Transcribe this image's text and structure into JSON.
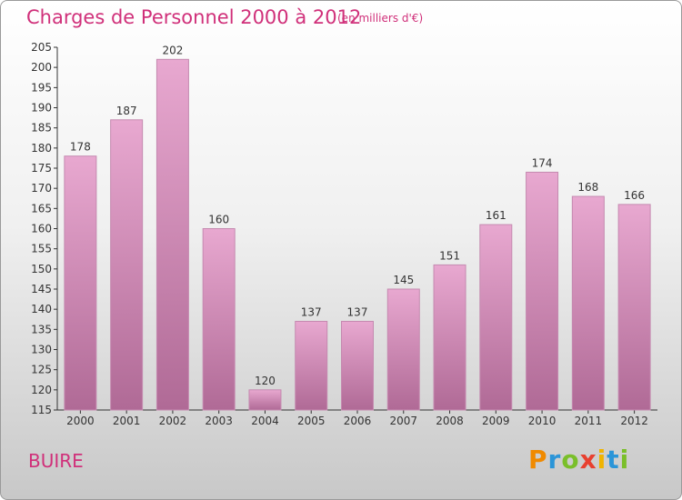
{
  "header": {
    "title": "Charges de Personnel 2000 à 2012",
    "unit": "(en milliers d'€)"
  },
  "footer": {
    "place": "BUIRE",
    "logo_text": "Proxiti"
  },
  "colors": {
    "bar_top": "#e8a8d0",
    "bar_bottom": "#b06a96",
    "title": "#d0307a"
  },
  "chart_data": {
    "type": "bar",
    "title": "Charges de Personnel 2000 à 2012",
    "xlabel": "",
    "ylabel": "",
    "categories": [
      "2000",
      "2001",
      "2002",
      "2003",
      "2004",
      "2005",
      "2006",
      "2007",
      "2008",
      "2009",
      "2010",
      "2011",
      "2012"
    ],
    "values": [
      178,
      187,
      202,
      160,
      120,
      137,
      137,
      145,
      151,
      161,
      174,
      168,
      166
    ],
    "ylim": [
      115,
      205
    ],
    "yticks": [
      115,
      120,
      125,
      130,
      135,
      140,
      145,
      150,
      155,
      160,
      165,
      170,
      175,
      180,
      185,
      190,
      195,
      200,
      205
    ],
    "grid": false,
    "legend": "none"
  }
}
